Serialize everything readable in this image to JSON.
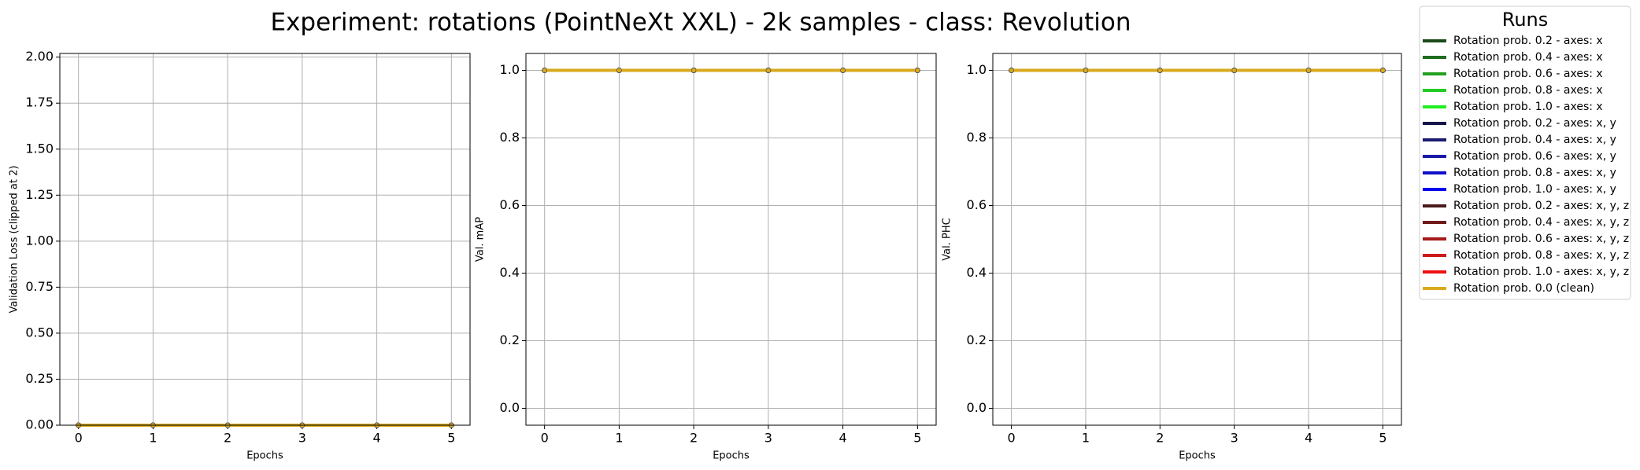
{
  "title": "Experiment: rotations (PointNeXt XXL) - 2k samples - class: Revolution",
  "legend": {
    "title": "Runs",
    "entries": [
      {
        "name": "Rotation prob. 0.2 - axes: x",
        "color": "#1a4a1a"
      },
      {
        "name": "Rotation prob. 0.4 - axes: x",
        "color": "#1f6e1f"
      },
      {
        "name": "Rotation prob. 0.6 - axes: x",
        "color": "#23a023"
      },
      {
        "name": "Rotation prob. 0.8 - axes: x",
        "color": "#22cc22"
      },
      {
        "name": "Rotation prob. 1.0 - axes: x",
        "color": "#22ee22"
      },
      {
        "name": "Rotation prob. 0.2 - axes: x, y",
        "color": "#15154a"
      },
      {
        "name": "Rotation prob. 0.4 - axes: x, y",
        "color": "#1a1a70"
      },
      {
        "name": "Rotation prob. 0.6 - axes: x, y",
        "color": "#1a1aa6"
      },
      {
        "name": "Rotation prob. 0.8 - axes: x, y",
        "color": "#1010cc"
      },
      {
        "name": "Rotation prob. 1.0 - axes: x, y",
        "color": "#0000ee"
      },
      {
        "name": "Rotation prob. 0.2 - axes: x, y, z",
        "color": "#4a1a1a"
      },
      {
        "name": "Rotation prob. 0.4 - axes: x, y, z",
        "color": "#701a1a"
      },
      {
        "name": "Rotation prob. 0.6 - axes: x, y, z",
        "color": "#a61a1a"
      },
      {
        "name": "Rotation prob. 0.8 - axes: x, y, z",
        "color": "#cc1a1a"
      },
      {
        "name": "Rotation prob. 1.0 - axes: x, y, z",
        "color": "#ee1010"
      },
      {
        "name": "Rotation prob. 0.0 (clean)",
        "color": "#d9aa1e"
      }
    ]
  },
  "chart_data": [
    {
      "type": "line",
      "ylabel": "Validation Loss (clipped at 2)",
      "xlabel": "Epochs",
      "grid": true,
      "x": [
        0,
        1,
        2,
        3,
        4,
        5
      ],
      "xlim": [
        -0.25,
        5.25
      ],
      "xticks": [
        0,
        1,
        2,
        3,
        4,
        5
      ],
      "ylim": [
        0,
        2.02
      ],
      "yticks": [
        {
          "value": 0,
          "label": "0.00"
        },
        {
          "value": 0.25,
          "label": "0.25"
        },
        {
          "value": 0.5,
          "label": "0.50"
        },
        {
          "value": 0.75,
          "label": "0.75"
        },
        {
          "value": 1,
          "label": "1.00"
        },
        {
          "value": 1.25,
          "label": "1.25"
        },
        {
          "value": 1.5,
          "label": "1.50"
        },
        {
          "value": 1.75,
          "label": "1.75"
        },
        {
          "value": 2,
          "label": "2.00"
        }
      ],
      "series": [
        {
          "values": [
            0,
            0,
            0,
            0,
            0,
            0
          ]
        },
        {
          "values": [
            0,
            0,
            0,
            0,
            0,
            0
          ]
        },
        {
          "values": [
            0,
            0,
            0,
            0,
            0,
            0
          ]
        },
        {
          "values": [
            0,
            0,
            0,
            0,
            0,
            0
          ]
        },
        {
          "values": [
            0,
            0,
            0,
            0,
            0,
            0
          ]
        },
        {
          "values": [
            0,
            0,
            0,
            0,
            0,
            0
          ]
        },
        {
          "values": [
            0,
            0,
            0,
            0,
            0,
            0
          ]
        },
        {
          "values": [
            0,
            0,
            0,
            0,
            0,
            0
          ]
        },
        {
          "values": [
            0,
            0,
            0,
            0,
            0,
            0
          ]
        },
        {
          "values": [
            0,
            0,
            0,
            0,
            0,
            0
          ]
        },
        {
          "values": [
            0,
            0,
            0,
            0,
            0,
            0
          ]
        },
        {
          "values": [
            0,
            0,
            0,
            0,
            0,
            0
          ]
        },
        {
          "values": [
            0,
            0,
            0,
            0,
            0,
            0
          ]
        },
        {
          "values": [
            0,
            0,
            0,
            0,
            0,
            0
          ]
        },
        {
          "values": [
            0,
            0,
            0,
            0,
            0,
            0
          ]
        },
        {
          "values": [
            0,
            0,
            0,
            0,
            0,
            0
          ]
        }
      ]
    },
    {
      "type": "line",
      "ylabel": "Val. mAP",
      "xlabel": "Epochs",
      "grid": true,
      "x": [
        0,
        1,
        2,
        3,
        4,
        5
      ],
      "xlim": [
        -0.25,
        5.25
      ],
      "xticks": [
        0,
        1,
        2,
        3,
        4,
        5
      ],
      "ylim": [
        -0.05,
        1.05
      ],
      "yticks": [
        {
          "value": 0,
          "label": "0.0"
        },
        {
          "value": 0.2,
          "label": "0.2"
        },
        {
          "value": 0.4,
          "label": "0.4"
        },
        {
          "value": 0.6,
          "label": "0.6"
        },
        {
          "value": 0.8,
          "label": "0.8"
        },
        {
          "value": 1,
          "label": "1.0"
        }
      ],
      "series": [
        {
          "values": [
            1,
            1,
            1,
            1,
            1,
            1
          ]
        },
        {
          "values": [
            1,
            1,
            1,
            1,
            1,
            1
          ]
        },
        {
          "values": [
            1,
            1,
            1,
            1,
            1,
            1
          ]
        },
        {
          "values": [
            1,
            1,
            1,
            1,
            1,
            1
          ]
        },
        {
          "values": [
            1,
            1,
            1,
            1,
            1,
            1
          ]
        },
        {
          "values": [
            1,
            1,
            1,
            1,
            1,
            1
          ]
        },
        {
          "values": [
            1,
            1,
            1,
            1,
            1,
            1
          ]
        },
        {
          "values": [
            1,
            1,
            1,
            1,
            1,
            1
          ]
        },
        {
          "values": [
            1,
            1,
            1,
            1,
            1,
            1
          ]
        },
        {
          "values": [
            1,
            1,
            1,
            1,
            1,
            1
          ]
        },
        {
          "values": [
            1,
            1,
            1,
            1,
            1,
            1
          ]
        },
        {
          "values": [
            1,
            1,
            1,
            1,
            1,
            1
          ]
        },
        {
          "values": [
            1,
            1,
            1,
            1,
            1,
            1
          ]
        },
        {
          "values": [
            1,
            1,
            1,
            1,
            1,
            1
          ]
        },
        {
          "values": [
            1,
            1,
            1,
            1,
            1,
            1
          ]
        },
        {
          "values": [
            1,
            1,
            1,
            1,
            1,
            1
          ]
        }
      ]
    },
    {
      "type": "line",
      "ylabel": "Val. PHC",
      "xlabel": "Epochs",
      "grid": true,
      "x": [
        0,
        1,
        2,
        3,
        4,
        5
      ],
      "xlim": [
        -0.25,
        5.25
      ],
      "xticks": [
        0,
        1,
        2,
        3,
        4,
        5
      ],
      "ylim": [
        -0.05,
        1.05
      ],
      "yticks": [
        {
          "value": 0,
          "label": "0.0"
        },
        {
          "value": 0.2,
          "label": "0.2"
        },
        {
          "value": 0.4,
          "label": "0.4"
        },
        {
          "value": 0.6,
          "label": "0.6"
        },
        {
          "value": 0.8,
          "label": "0.8"
        },
        {
          "value": 1,
          "label": "1.0"
        }
      ],
      "series": [
        {
          "values": [
            1,
            1,
            1,
            1,
            1,
            1
          ]
        },
        {
          "values": [
            1,
            1,
            1,
            1,
            1,
            1
          ]
        },
        {
          "values": [
            1,
            1,
            1,
            1,
            1,
            1
          ]
        },
        {
          "values": [
            1,
            1,
            1,
            1,
            1,
            1
          ]
        },
        {
          "values": [
            1,
            1,
            1,
            1,
            1,
            1
          ]
        },
        {
          "values": [
            1,
            1,
            1,
            1,
            1,
            1
          ]
        },
        {
          "values": [
            1,
            1,
            1,
            1,
            1,
            1
          ]
        },
        {
          "values": [
            1,
            1,
            1,
            1,
            1,
            1
          ]
        },
        {
          "values": [
            1,
            1,
            1,
            1,
            1,
            1
          ]
        },
        {
          "values": [
            1,
            1,
            1,
            1,
            1,
            1
          ]
        },
        {
          "values": [
            1,
            1,
            1,
            1,
            1,
            1
          ]
        },
        {
          "values": [
            1,
            1,
            1,
            1,
            1,
            1
          ]
        },
        {
          "values": [
            1,
            1,
            1,
            1,
            1,
            1
          ]
        },
        {
          "values": [
            1,
            1,
            1,
            1,
            1,
            1
          ]
        },
        {
          "values": [
            1,
            1,
            1,
            1,
            1,
            1
          ]
        },
        {
          "values": [
            1,
            1,
            1,
            1,
            1,
            1
          ]
        }
      ]
    }
  ]
}
